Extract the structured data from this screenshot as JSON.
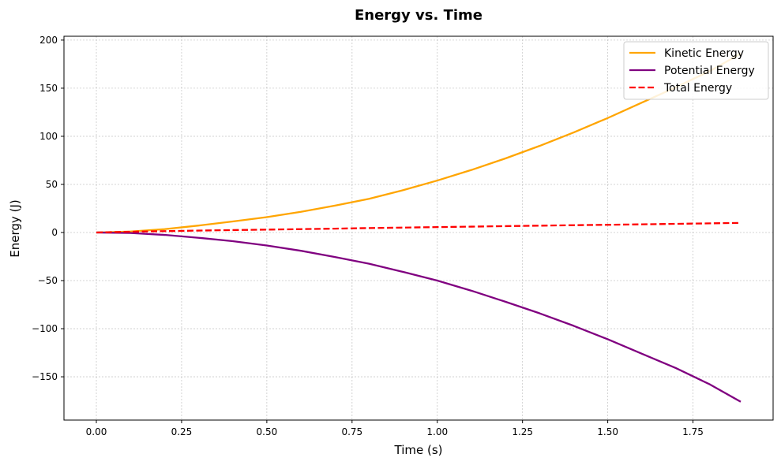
{
  "chart_data": {
    "type": "line",
    "title": "Energy vs. Time",
    "xlabel": "Time (s)",
    "ylabel": "Energy (J)",
    "xlim": [
      -0.095,
      1.985
    ],
    "ylim": [
      -195,
      204
    ],
    "xticks": [
      0.0,
      0.25,
      0.5,
      0.75,
      1.0,
      1.25,
      1.5,
      1.75
    ],
    "xtick_labels": [
      "0.00",
      "0.25",
      "0.50",
      "0.75",
      "1.00",
      "1.25",
      "1.50",
      "1.75"
    ],
    "yticks": [
      -150,
      -100,
      -50,
      0,
      50,
      100,
      150,
      200
    ],
    "ytick_labels": [
      "−150",
      "−100",
      "−50",
      "0",
      "50",
      "100",
      "150",
      "200"
    ],
    "grid": true,
    "legend_position": "top-right",
    "x": [
      0.0,
      0.1,
      0.2,
      0.3,
      0.4,
      0.5,
      0.6,
      0.7,
      0.8,
      0.9,
      1.0,
      1.1,
      1.2,
      1.3,
      1.4,
      1.5,
      1.6,
      1.7,
      1.8,
      1.89
    ],
    "series": [
      {
        "name": "Kinetic Energy",
        "color": "#ffa500",
        "dash": "solid",
        "values": [
          0.0,
          1.0,
          3.5,
          7.2,
          11.5,
          16.0,
          21.5,
          28.0,
          35.0,
          44.0,
          54.0,
          65.0,
          77.0,
          90.0,
          104.0,
          119.0,
          135.0,
          151.0,
          168.0,
          186.0
        ]
      },
      {
        "name": "Potential Energy",
        "color": "#800080",
        "dash": "solid",
        "values": [
          0.0,
          -0.5,
          -2.5,
          -5.5,
          -9.0,
          -13.5,
          -19.0,
          -25.5,
          -32.5,
          -41.0,
          -50.0,
          -60.5,
          -72.0,
          -84.0,
          -97.0,
          -111.0,
          -126.0,
          -141.0,
          -158.0,
          -176.0
        ]
      },
      {
        "name": "Total Energy",
        "color": "#ff0000",
        "dash": "dashed",
        "values": [
          0.0,
          0.8,
          1.4,
          2.0,
          2.5,
          3.0,
          3.5,
          4.0,
          4.6,
          5.1,
          5.6,
          6.1,
          6.6,
          7.1,
          7.6,
          8.0,
          8.5,
          9.0,
          9.5,
          10.0
        ]
      }
    ]
  }
}
